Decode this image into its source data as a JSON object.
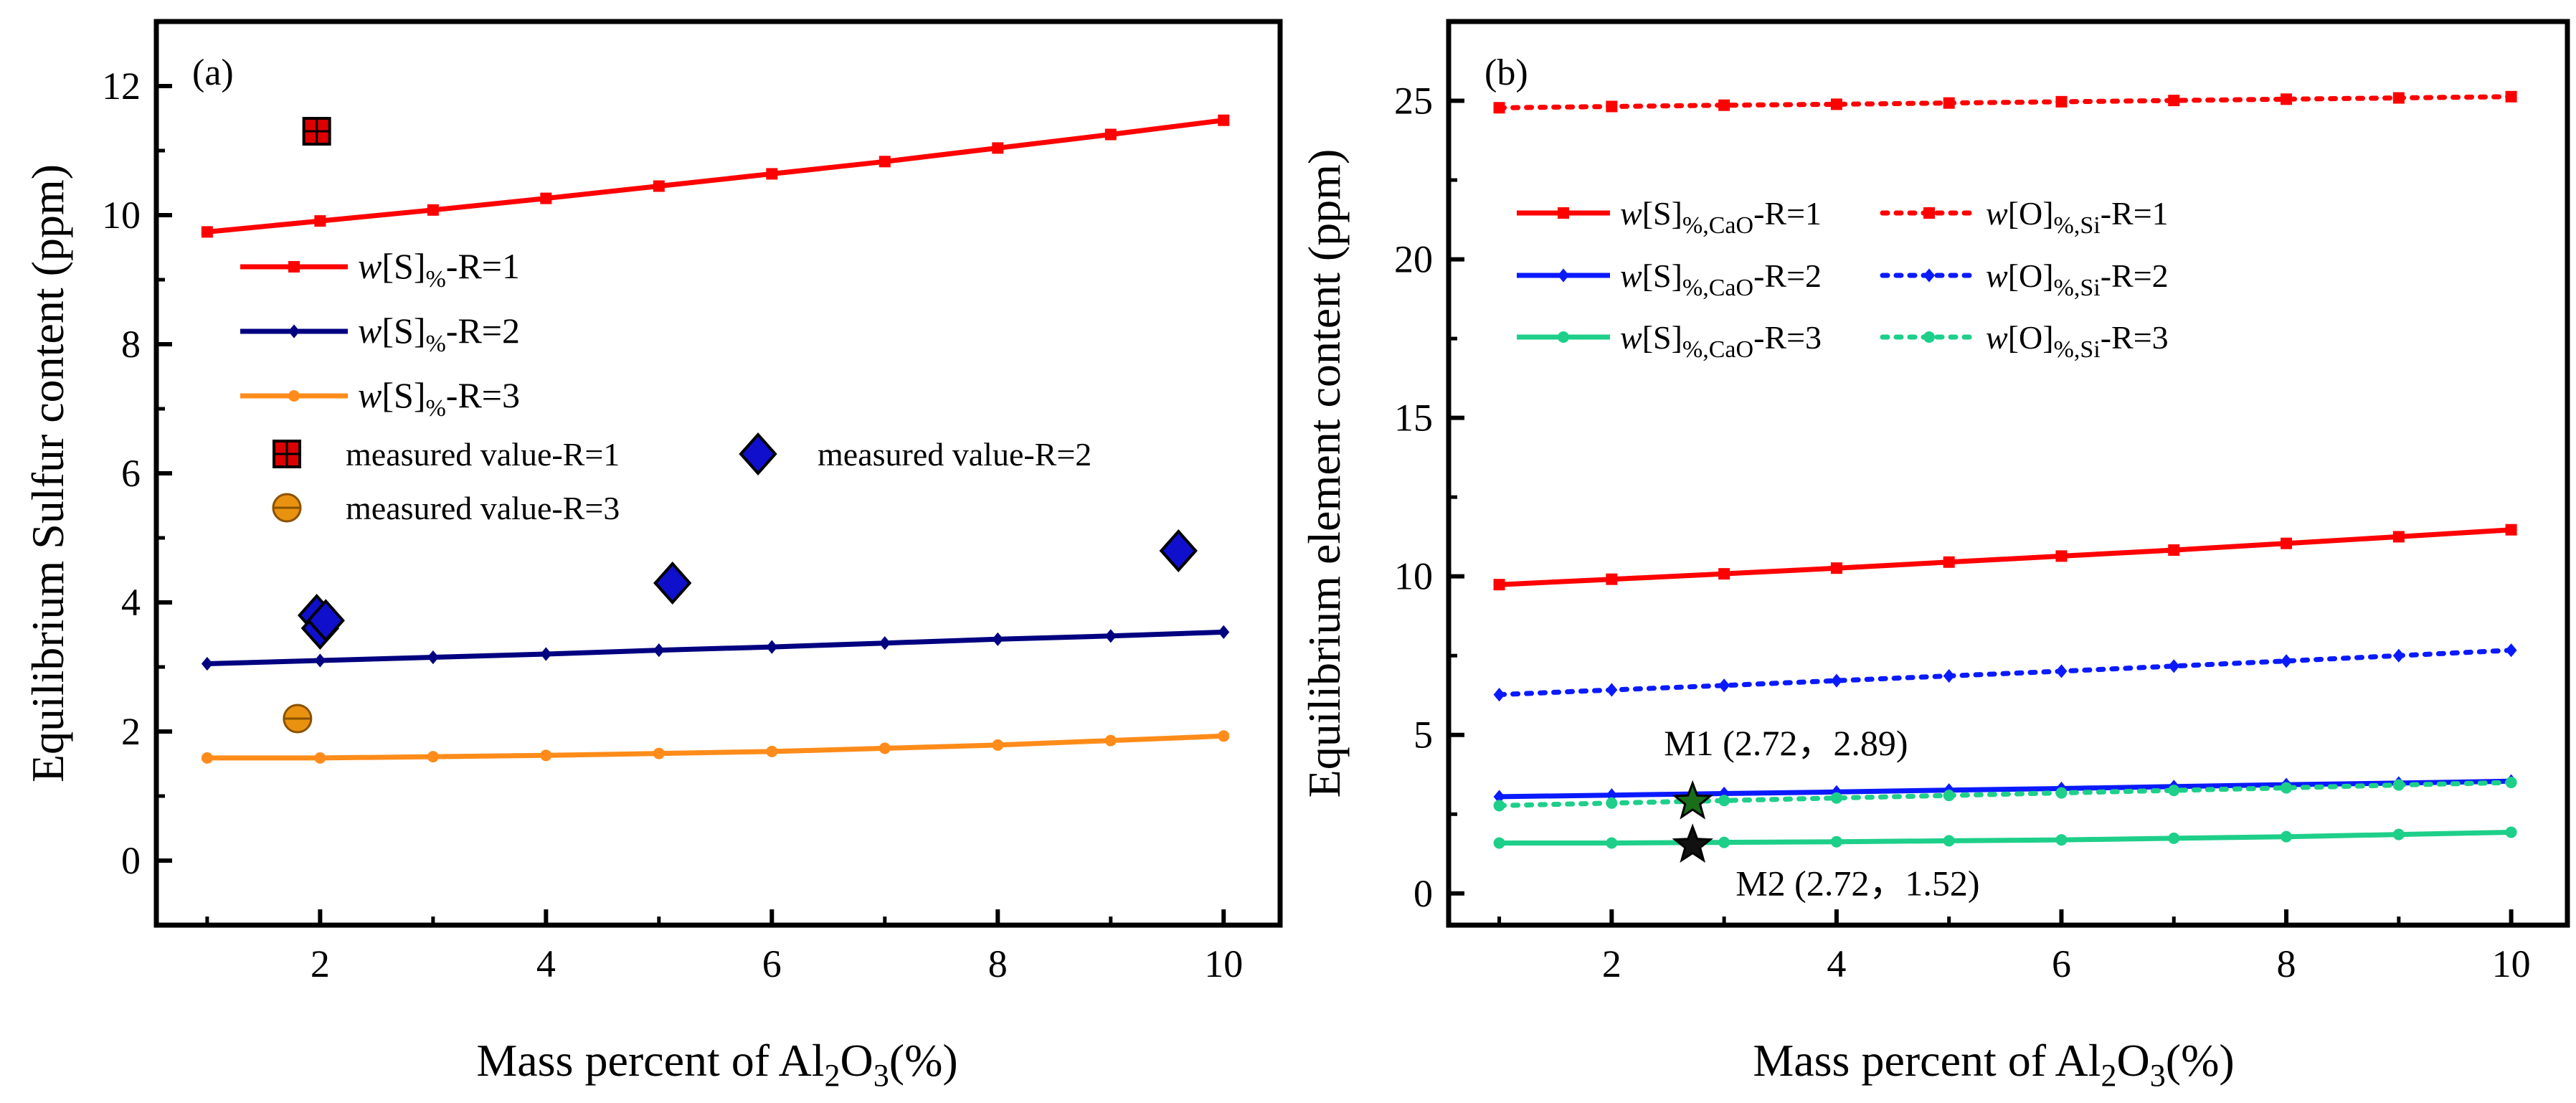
{
  "chart_data": [
    {
      "panel_label": "(a)",
      "type": "line",
      "xlabel": {
        "base": "Mass percent of Al",
        "sub1": "2",
        "mid": "O",
        "sub2": "3",
        "tail": "(%)"
      },
      "ylabel": "Equilibrium Sulfur content  (ppm)",
      "xlim": [
        0.55,
        10.5
      ],
      "ylim": [
        -1.0,
        13.0
      ],
      "xticks": [
        2,
        4,
        6,
        8,
        10
      ],
      "yticks": [
        0,
        2,
        4,
        6,
        8,
        10,
        12
      ],
      "x": [
        1,
        2,
        3,
        4,
        5,
        6,
        7,
        8,
        9,
        10
      ],
      "series": [
        {
          "name": "w[S]%-R=1",
          "legend": {
            "italic": "w",
            "main": "[S]",
            "sub": "%",
            "tail": "-R=1"
          },
          "color": "#ff0000",
          "marker": "square",
          "dash": "solid",
          "values": [
            9.74,
            9.91,
            10.08,
            10.26,
            10.45,
            10.64,
            10.83,
            11.04,
            11.25,
            11.47
          ]
        },
        {
          "name": "w[S]%-R=2",
          "legend": {
            "italic": "w",
            "main": "[S]",
            "sub": "%",
            "tail": "-R=2"
          },
          "color": "#000080",
          "marker": "diamond",
          "dash": "solid",
          "values": [
            3.05,
            3.1,
            3.15,
            3.2,
            3.26,
            3.31,
            3.37,
            3.43,
            3.48,
            3.54
          ]
        },
        {
          "name": "w[S]%-R=3",
          "legend": {
            "italic": "w",
            "main": "[S]",
            "sub": "%",
            "tail": "-R=3"
          },
          "color": "#ff8c1a",
          "marker": "circle",
          "dash": "solid",
          "values": [
            1.59,
            1.59,
            1.61,
            1.63,
            1.66,
            1.69,
            1.74,
            1.79,
            1.86,
            1.93
          ]
        }
      ],
      "measured": [
        {
          "name": "measured value-R=1",
          "color": "#dd0000",
          "marker": "square-grid",
          "points": [
            [
              1.97,
              11.3
            ]
          ]
        },
        {
          "name": "measured value-R=2",
          "color": "#1010cc",
          "marker": "big-diamond",
          "points": [
            [
              1.97,
              3.8
            ],
            [
              2.0,
              3.6
            ],
            [
              2.05,
              3.72
            ],
            [
              5.12,
              4.3
            ],
            [
              9.6,
              4.8
            ]
          ]
        },
        {
          "name": "measured value-R=3",
          "color": "#e8920f",
          "marker": "big-circle",
          "points": [
            [
              1.8,
              2.2
            ]
          ]
        }
      ]
    },
    {
      "panel_label": "(b)",
      "type": "line",
      "xlabel": {
        "base": "Mass percent of Al",
        "sub1": "2",
        "mid": "O",
        "sub2": "3",
        "tail": "(%)"
      },
      "ylabel": "Equilibrium element content  (ppm)",
      "xlim": [
        0.55,
        10.5
      ],
      "ylim": [
        -1.0,
        27.5
      ],
      "xticks": [
        2,
        4,
        6,
        8,
        10
      ],
      "yticks": [
        0,
        5,
        10,
        15,
        20,
        25
      ],
      "x": [
        1,
        2,
        3,
        4,
        5,
        6,
        7,
        8,
        9,
        10
      ],
      "series": [
        {
          "name": "w[S]%,CaO-R=1",
          "legend": {
            "italic": "w",
            "main": "[S]",
            "sub": "%,CaO",
            "tail": "-R=1"
          },
          "color": "#ff0000",
          "marker": "square",
          "dash": "solid",
          "values": [
            9.74,
            9.91,
            10.08,
            10.26,
            10.45,
            10.64,
            10.83,
            11.04,
            11.25,
            11.47
          ]
        },
        {
          "name": "w[O]%,Si-R=1",
          "legend": {
            "italic": "w",
            "main": "[O]",
            "sub": "%,Si",
            "tail": "-R=1"
          },
          "color": "#ff0000",
          "marker": "square",
          "dash": "dotted",
          "values": [
            24.78,
            24.82,
            24.86,
            24.89,
            24.93,
            24.97,
            25.01,
            25.05,
            25.09,
            25.13
          ]
        },
        {
          "name": "w[S]%,CaO-R=2",
          "legend": {
            "italic": "w",
            "main": "[S]",
            "sub": "%,CaO",
            "tail": "-R=2"
          },
          "color": "#0a1aff",
          "marker": "diamond",
          "dash": "solid",
          "values": [
            3.05,
            3.1,
            3.15,
            3.2,
            3.26,
            3.31,
            3.37,
            3.43,
            3.48,
            3.54
          ]
        },
        {
          "name": "w[O]%,Si-R=2",
          "legend": {
            "italic": "w",
            "main": "[O]",
            "sub": "%,Si",
            "tail": "-R=2"
          },
          "color": "#0a1aff",
          "marker": "diamond",
          "dash": "dotted",
          "values": [
            6.27,
            6.42,
            6.56,
            6.71,
            6.86,
            7.01,
            7.17,
            7.33,
            7.5,
            7.67
          ]
        },
        {
          "name": "w[S]%,CaO-R=3",
          "legend": {
            "italic": "w",
            "main": "[S]",
            "sub": "%,CaO",
            "tail": "-R=3"
          },
          "color": "#1ecf8a",
          "marker": "circle",
          "dash": "solid",
          "values": [
            1.59,
            1.59,
            1.61,
            1.63,
            1.66,
            1.69,
            1.74,
            1.79,
            1.86,
            1.93
          ]
        },
        {
          "name": "w[O]%,Si-R=3",
          "legend": {
            "italic": "w",
            "main": "[O]",
            "sub": "%,Si",
            "tail": "-R=3"
          },
          "color": "#1ecf8a",
          "marker": "circle",
          "dash": "dotted",
          "values": [
            2.77,
            2.85,
            2.93,
            3.01,
            3.09,
            3.17,
            3.25,
            3.33,
            3.42,
            3.5
          ]
        }
      ],
      "annotations": [
        {
          "label": "M1 (2.72，2.89)",
          "x": 2.72,
          "y": 2.89,
          "star_color": "#1a6e1a"
        },
        {
          "label": "M2 (2.72，1.52)",
          "x": 2.72,
          "y": 1.52,
          "star_color": "#111111"
        }
      ]
    }
  ]
}
